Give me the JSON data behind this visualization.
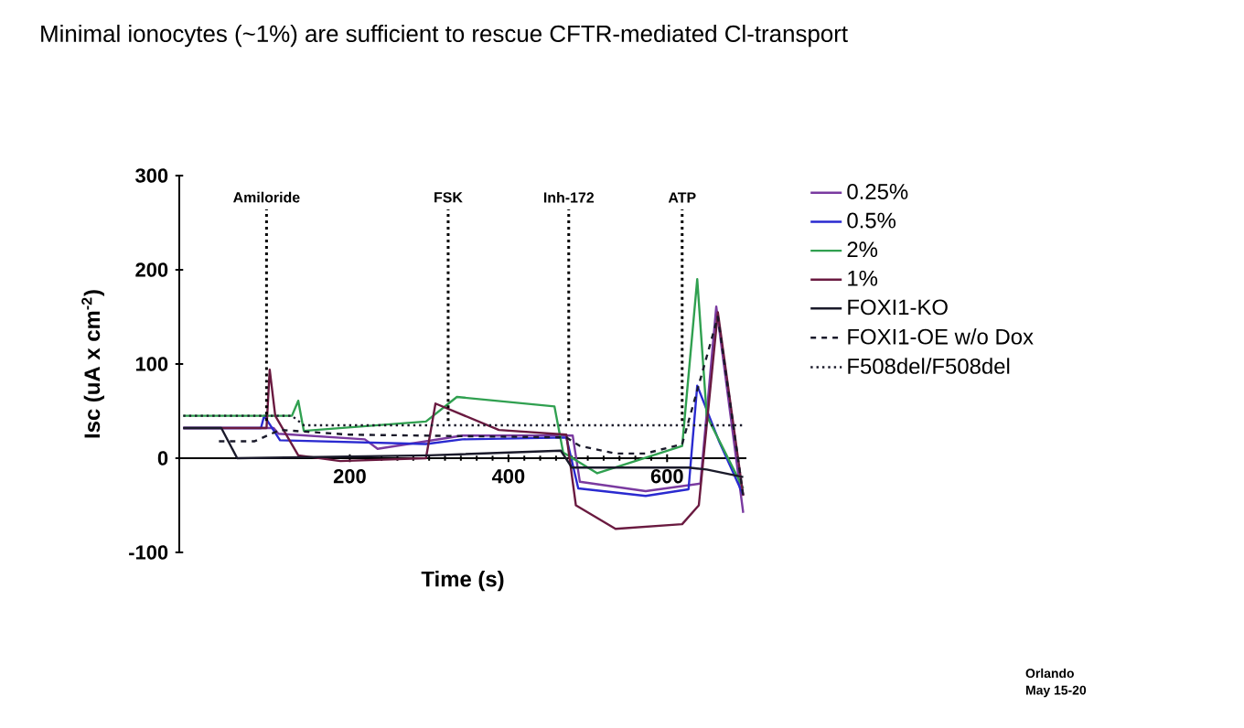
{
  "chart_data": {
    "type": "line",
    "title": "Minimal ionocytes (~1%) are sufficient to rescue CFTR-mediated Cl-transport",
    "xlabel": "Time (s)",
    "ylabel": "Isc (uA x cm$^{-2}$)",
    "xlim": [
      -15,
      700
    ],
    "ylim": [
      -100,
      300
    ],
    "xticks": [
      200,
      400,
      600
    ],
    "yticks": [
      -100,
      0,
      100,
      200,
      300
    ],
    "legend": "right",
    "grid": false,
    "series": [
      {
        "name": "0.25%",
        "color": "#7a3aa0",
        "line_style": "solid",
        "x": [
          -10,
          104,
          110,
          219,
          235,
          342,
          481,
          490,
          573,
          642,
          662,
          696
        ],
        "values": [
          32,
          32,
          26,
          20,
          10,
          24,
          24,
          -25,
          -35,
          -27,
          161,
          -58
        ]
      },
      {
        "name": "0.5%",
        "color": "#2a2ad0",
        "line_style": "solid",
        "x": [
          -10,
          88,
          92,
          112,
          296,
          342,
          473,
          488,
          573,
          627,
          638,
          665,
          696
        ],
        "values": [
          32,
          32,
          45,
          19,
          15,
          20,
          22,
          -32,
          -40,
          -33,
          77,
          19,
          -39
        ]
      },
      {
        "name": "2%",
        "color": "#30a050",
        "line_style": "solid",
        "x": [
          -10,
          127,
          135,
          142,
          296,
          335,
          458,
          469,
          512,
          619,
          638,
          650,
          696
        ],
        "values": [
          45,
          45,
          61,
          29,
          39,
          65,
          55,
          6,
          -16,
          13,
          190,
          45,
          -32
        ]
      },
      {
        "name": "1%",
        "color": "#6a1a40",
        "line_style": "solid",
        "x": [
          -10,
          95,
          99,
          106,
          135,
          188,
          296,
          308,
          388,
          473,
          485,
          535,
          619,
          640,
          664,
          696
        ],
        "values": [
          32,
          32,
          94,
          45,
          3,
          -3,
          0,
          58,
          30,
          25,
          -50,
          -75,
          -70,
          -50,
          155,
          -40
        ]
      },
      {
        "name": "FOXI1-KO",
        "color": "#1a1a2a",
        "line_style": "solid",
        "x": [
          -10,
          38,
          58,
          300,
          466,
          480,
          627,
          650,
          696
        ],
        "values": [
          32,
          32,
          0,
          3,
          8,
          -10,
          -10,
          -12,
          -20
        ]
      },
      {
        "name": "FOXI1-OE w/o Dox",
        "color": "#1a1a2a",
        "line_style": "dashed",
        "x": [
          35,
          80,
          112,
          200,
          473,
          490,
          535,
          573,
          619,
          664,
          696
        ],
        "values": [
          18,
          18,
          30,
          25,
          22,
          13,
          5,
          5,
          15,
          150,
          -40
        ]
      },
      {
        "name": "F508del/F508del",
        "color": "#1a1a2a",
        "line_style": "dotted",
        "x": [
          -10,
          127,
          142,
          696
        ],
        "values": [
          45,
          45,
          35,
          35
        ]
      }
    ],
    "ref_lines": [
      {
        "axis": "x",
        "value": 95,
        "label": "Amiloride",
        "line_style": "dotted"
      },
      {
        "axis": "x",
        "value": 324,
        "label": "FSK",
        "line_style": "dotted"
      },
      {
        "axis": "x",
        "value": 476,
        "label": "Inh-172",
        "line_style": "dotted"
      },
      {
        "axis": "x",
        "value": 619,
        "label": "ATP",
        "line_style": "dotted"
      }
    ],
    "annotations": [
      "Orlando",
      "May 15-20"
    ]
  }
}
